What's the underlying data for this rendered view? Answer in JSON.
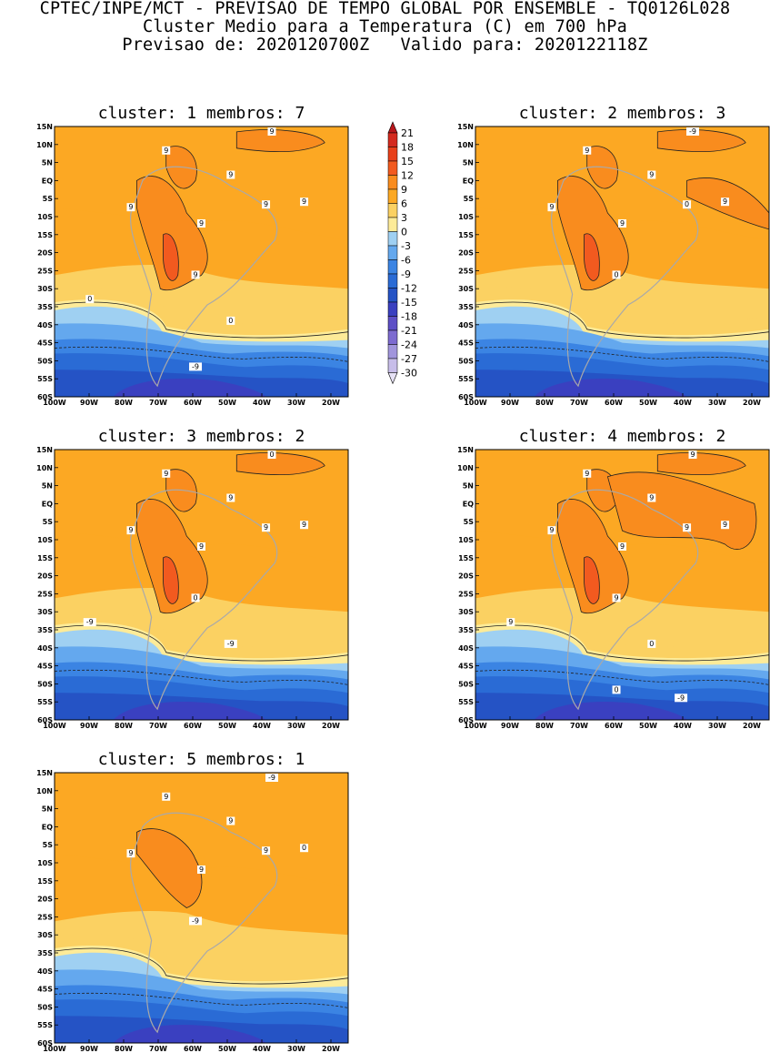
{
  "header": {
    "line1": "CPTEC/INPE/MCT - PREVISAO DE TEMPO GLOBAL POR ENSEMBLE - TQ0126L028",
    "line2": "Cluster Medio para a Temperatura (C) em 700 hPa",
    "line3": "Previsao de: 2020120700Z   Valido para: 2020122118Z"
  },
  "map_extent": {
    "lon": [
      "100W",
      "15W"
    ],
    "lat": [
      "60S",
      "15N"
    ]
  },
  "lat_ticks": [
    "15N",
    "10N",
    "5N",
    "EQ",
    "5S",
    "10S",
    "15S",
    "20S",
    "25S",
    "30S",
    "35S",
    "40S",
    "45S",
    "50S",
    "55S",
    "60S"
  ],
  "lon_ticks": [
    "100W",
    "90W",
    "80W",
    "70W",
    "60W",
    "50W",
    "40W",
    "30W",
    "20W"
  ],
  "colorbar": {
    "levels": [
      "21",
      "18",
      "15",
      "12",
      "9",
      "6",
      "3",
      "0",
      "-3",
      "-6",
      "-9",
      "-12",
      "-15",
      "-18",
      "-21",
      "-24",
      "-27",
      "-30"
    ],
    "colors": [
      "#b8171b",
      "#d42a1f",
      "#e8401a",
      "#f25a1f",
      "#f98c1e",
      "#fca823",
      "#fbd162",
      "#fdeb98",
      "#9fd0f2",
      "#64a8ee",
      "#3b84e3",
      "#2a6bd5",
      "#2553c5",
      "#3a40c0",
      "#5d4fc6",
      "#7d6bd0",
      "#a195dc",
      "#c7bde9",
      "#e6e1f5"
    ]
  },
  "panels": [
    {
      "title": "cluster: 1   membros: 7",
      "contour_labels": [
        "9",
        "9",
        "9",
        "9",
        "9",
        "9",
        "9",
        "9",
        "0",
        "0",
        "-9"
      ]
    },
    {
      "title": "cluster: 2   membros: 3",
      "contour_labels": [
        "9",
        "9",
        "9",
        "9",
        "9",
        "0",
        "0",
        "-9"
      ]
    },
    {
      "title": "cluster: 3   membros: 2",
      "contour_labels": [
        "9",
        "9",
        "9",
        "9",
        "9",
        "9",
        "0",
        "0",
        "-9",
        "-9"
      ]
    },
    {
      "title": "cluster: 4   membros: 2",
      "contour_labels": [
        "9",
        "9",
        "9",
        "9",
        "9",
        "9",
        "9",
        "9",
        "9",
        "0",
        "0",
        "-9"
      ]
    },
    {
      "title": "cluster: 5   membros: 1",
      "contour_labels": [
        "9",
        "9",
        "9",
        "9",
        "0",
        "9",
        "-9",
        "-9"
      ]
    }
  ]
}
